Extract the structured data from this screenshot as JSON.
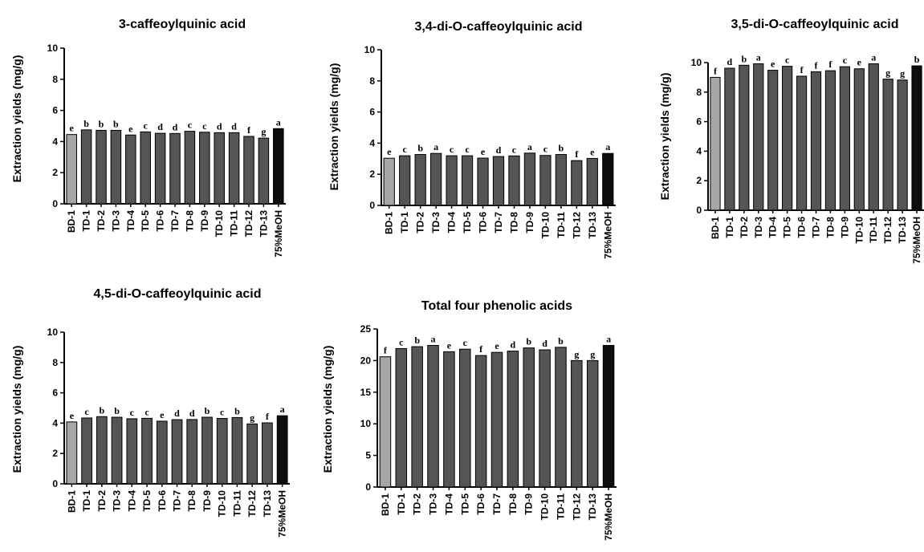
{
  "chart_data": [
    {
      "type": "bar",
      "title": "3-caffeoylquinic acid",
      "ylabel": "Extraction yields (mg/g)",
      "ylim": [
        0,
        10
      ],
      "yticks": [
        0,
        2,
        4,
        6,
        8,
        10
      ],
      "categories": [
        "BD-1",
        "TD-1",
        "TD-2",
        "TD-3",
        "TD-4",
        "TD-5",
        "TD-6",
        "TD-7",
        "TD-8",
        "TD-9",
        "TD-10",
        "TD-11",
        "TD-12",
        "TD-13",
        "75%MeOH"
      ],
      "values": [
        4.45,
        4.75,
        4.72,
        4.72,
        4.42,
        4.62,
        4.53,
        4.52,
        4.66,
        4.6,
        4.57,
        4.57,
        4.33,
        4.22,
        4.83
      ],
      "letters": [
        "e",
        "b",
        "b",
        "b",
        "e",
        "c",
        "d",
        "d",
        "c",
        "c",
        "d",
        "d",
        "f",
        "g",
        "a"
      ],
      "colors": {
        "first": "#a6a6a6",
        "middle": "#555555",
        "last": "#0d0d0d"
      }
    },
    {
      "type": "bar",
      "title": "3,4-di-O-caffeoylquinic acid",
      "ylabel": "Extraction yields (mg/g)",
      "ylim": [
        0,
        10
      ],
      "yticks": [
        0,
        2,
        4,
        6,
        8,
        10
      ],
      "categories": [
        "BD-1",
        "TD-1",
        "TD-2",
        "TD-3",
        "TD-4",
        "TD-5",
        "TD-6",
        "TD-7",
        "TD-8",
        "TD-9",
        "TD-10",
        "TD-11",
        "TD-12",
        "TD-13",
        "75%MeOH"
      ],
      "values": [
        3.03,
        3.19,
        3.27,
        3.34,
        3.19,
        3.19,
        3.04,
        3.14,
        3.18,
        3.36,
        3.21,
        3.27,
        2.88,
        3.02,
        3.34
      ],
      "letters": [
        "e",
        "c",
        "b",
        "a",
        "c",
        "c",
        "e",
        "d",
        "c",
        "a",
        "c",
        "b",
        "f",
        "e",
        "a"
      ],
      "colors": {
        "first": "#a6a6a6",
        "middle": "#555555",
        "last": "#0d0d0d"
      }
    },
    {
      "type": "bar",
      "title": "3,5-di-O-caffeoylquinic acid",
      "ylabel": "Extraction yields (mg/g)",
      "ylim": [
        0,
        10
      ],
      "yticks": [
        0,
        2,
        4,
        6,
        8,
        10
      ],
      "categories": [
        "BD-1",
        "TD-1",
        "TD-2",
        "TD-3",
        "TD-4",
        "TD-5",
        "TD-6",
        "TD-7",
        "TD-8",
        "TD-9",
        "TD-10",
        "TD-11",
        "TD-12",
        "TD-13",
        "75%MeOH"
      ],
      "values": [
        9.0,
        9.62,
        9.82,
        9.92,
        9.48,
        9.75,
        9.08,
        9.38,
        9.45,
        9.72,
        9.58,
        9.92,
        8.88,
        8.82,
        9.78
      ],
      "letters": [
        "f",
        "d",
        "b",
        "a",
        "e",
        "c",
        "f",
        "f",
        "f",
        "c",
        "e",
        "a",
        "g",
        "g",
        "b"
      ],
      "colors": {
        "first": "#a6a6a6",
        "middle": "#555555",
        "last": "#0d0d0d"
      }
    },
    {
      "type": "bar",
      "title": "4,5-di-O-caffeoylquinic acid",
      "ylabel": "Extraction yields (mg/g)",
      "ylim": [
        0,
        10
      ],
      "yticks": [
        0,
        2,
        4,
        6,
        8,
        10
      ],
      "categories": [
        "BD-1",
        "TD-1",
        "TD-2",
        "TD-3",
        "TD-4",
        "TD-5",
        "TD-6",
        "TD-7",
        "TD-8",
        "TD-9",
        "TD-10",
        "TD-11",
        "TD-12",
        "TD-13",
        "75%MeOH"
      ],
      "values": [
        4.08,
        4.34,
        4.43,
        4.39,
        4.29,
        4.32,
        4.13,
        4.23,
        4.24,
        4.39,
        4.31,
        4.37,
        3.95,
        4.02,
        4.49
      ],
      "letters": [
        "e",
        "c",
        "b",
        "b",
        "c",
        "c",
        "e",
        "d",
        "d",
        "b",
        "c",
        "b",
        "g",
        "f",
        "a"
      ],
      "colors": {
        "first": "#a6a6a6",
        "middle": "#555555",
        "last": "#0d0d0d"
      }
    },
    {
      "type": "bar",
      "title": "Total four phenolic acids",
      "ylabel": "Extraction yields (mg/g)",
      "ylim": [
        0,
        25
      ],
      "yticks": [
        0,
        5,
        10,
        15,
        20,
        25
      ],
      "categories": [
        "BD-1",
        "TD-1",
        "TD-2",
        "TD-3",
        "TD-4",
        "TD-5",
        "TD-6",
        "TD-7",
        "TD-8",
        "TD-9",
        "TD-10",
        "TD-11",
        "TD-12",
        "TD-13",
        "75%MeOH"
      ],
      "values": [
        20.6,
        21.9,
        22.2,
        22.4,
        21.4,
        21.8,
        20.8,
        21.3,
        21.5,
        22.0,
        21.7,
        22.1,
        20.0,
        20.0,
        22.4
      ],
      "letters": [
        "f",
        "c",
        "b",
        "a",
        "e",
        "c",
        "f",
        "e",
        "d",
        "b",
        "d",
        "b",
        "g",
        "g",
        "a"
      ],
      "colors": {
        "first": "#a6a6a6",
        "middle": "#555555",
        "last": "#0d0d0d"
      }
    }
  ]
}
